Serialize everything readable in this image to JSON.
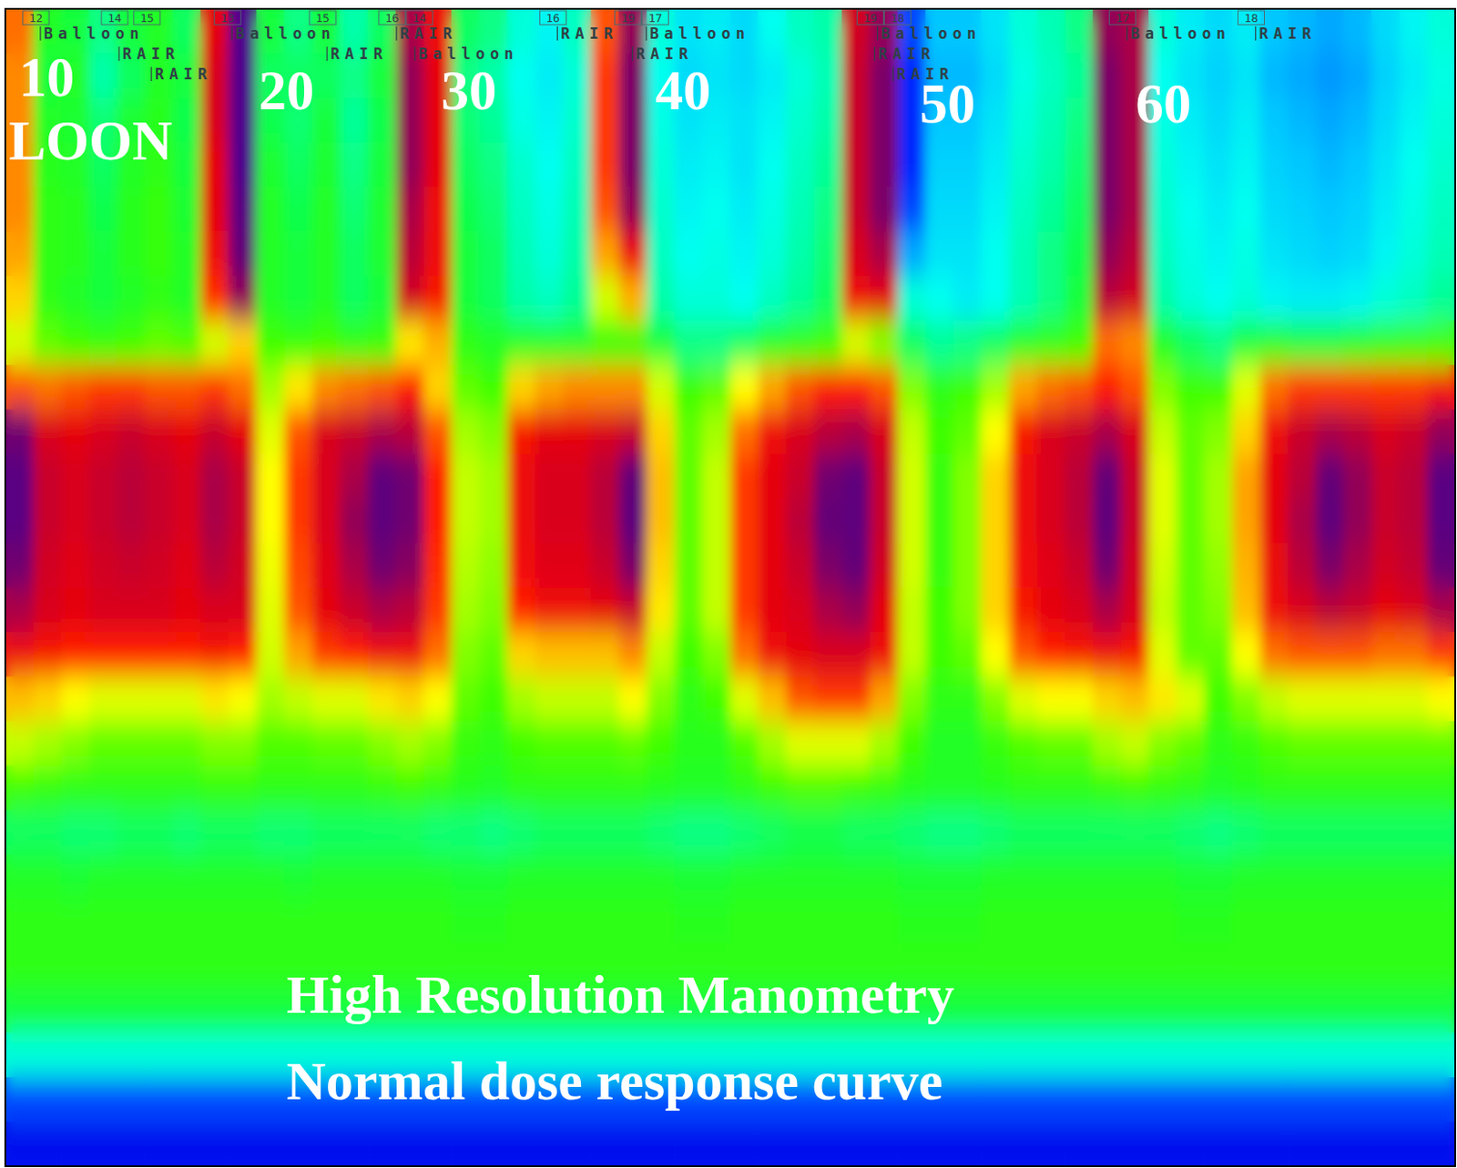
{
  "chart_data": {
    "type": "heatmap",
    "title": "High Resolution Manometry",
    "subtitle": "Normal dose response curve",
    "xlim": [
      0,
      52
    ],
    "ylim": [
      0,
      26
    ],
    "zlim": [
      0,
      100
    ],
    "tick_labels": false,
    "grid": false,
    "annotations": [
      "10",
      "LOON",
      "20",
      "30",
      "40",
      "50",
      "60"
    ],
    "events": [
      {
        "x": 1.26,
        "label": "12",
        "text": "Balloon"
      },
      {
        "x": 4.08,
        "label": "14",
        "text": "RAIR"
      },
      {
        "x": 5.24,
        "label": "15",
        "text": "RAIR"
      },
      {
        "x": 8.13,
        "label": "13",
        "text": "Balloon"
      },
      {
        "x": 11.54,
        "label": "15",
        "text": "RAIR"
      },
      {
        "x": 14.03,
        "label": "16",
        "text": "RAIR"
      },
      {
        "x": 14.69,
        "label": "14",
        "text": "Balloon"
      },
      {
        "x": 19.8,
        "label": "16",
        "text": "RAIR"
      },
      {
        "x": 22.99,
        "label": "17",
        "text": "Balloon"
      },
      {
        "x": 22.49,
        "label": "19",
        "text": "RAIR"
      },
      {
        "x": 31.28,
        "label": "18",
        "text": "Balloon"
      },
      {
        "x": 31.18,
        "label": "19",
        "text": "RAIR"
      },
      {
        "x": 31.84,
        "text": "RAIR"
      },
      {
        "x": 40.23,
        "label": "17",
        "text": "Balloon"
      },
      {
        "x": 44.84,
        "label": "18",
        "text": "RAIR"
      }
    ],
    "z": [
      [
        70,
        42,
        40,
        36,
        40,
        42,
        38,
        82,
        100,
        40,
        36,
        40,
        34,
        38,
        90,
        80,
        38,
        36,
        30,
        27,
        32,
        72,
        92,
        30,
        25,
        26,
        24,
        28,
        32,
        34,
        85,
        92,
        14,
        22,
        22,
        25,
        30,
        33,
        36,
        92,
        90,
        30,
        26,
        24,
        26,
        22,
        21,
        20,
        21,
        24,
        27,
        30
      ],
      [
        68,
        40,
        42,
        34,
        38,
        42,
        40,
        84,
        100,
        38,
        38,
        38,
        36,
        40,
        92,
        82,
        36,
        34,
        28,
        26,
        30,
        74,
        94,
        28,
        24,
        25,
        24,
        26,
        30,
        33,
        86,
        94,
        12,
        21,
        21,
        24,
        29,
        32,
        35,
        94,
        90,
        28,
        25,
        23,
        25,
        21,
        20,
        19,
        20,
        23,
        26,
        29
      ],
      [
        68,
        42,
        41,
        37,
        41,
        43,
        39,
        84,
        100,
        39,
        37,
        40,
        35,
        39,
        92,
        82,
        37,
        35,
        29,
        27,
        31,
        74,
        94,
        29,
        25,
        26,
        25,
        27,
        31,
        34,
        86,
        94,
        12,
        22,
        22,
        25,
        30,
        33,
        36,
        94,
        90,
        29,
        26,
        24,
        26,
        22,
        21,
        20,
        21,
        24,
        27,
        30
      ],
      [
        68,
        43,
        42,
        38,
        42,
        44,
        40,
        82,
        100,
        41,
        38,
        41,
        36,
        40,
        92,
        82,
        38,
        36,
        31,
        28,
        32,
        74,
        94,
        30,
        26,
        27,
        25,
        28,
        32,
        35,
        86,
        94,
        12,
        23,
        23,
        26,
        31,
        34,
        37,
        94,
        90,
        30,
        27,
        25,
        27,
        23,
        22,
        21,
        22,
        25,
        28,
        31
      ],
      [
        68,
        44,
        43,
        39,
        43,
        45,
        41,
        82,
        98,
        42,
        39,
        42,
        37,
        41,
        90,
        80,
        39,
        37,
        32,
        29,
        33,
        72,
        92,
        31,
        27,
        28,
        26,
        29,
        33,
        36,
        86,
        94,
        14,
        24,
        24,
        27,
        32,
        35,
        38,
        94,
        90,
        31,
        28,
        26,
        28,
        24,
        23,
        22,
        23,
        26,
        29,
        32
      ],
      [
        66,
        44,
        43,
        40,
        43,
        45,
        42,
        80,
        96,
        42,
        40,
        42,
        38,
        41,
        88,
        80,
        40,
        38,
        33,
        30,
        34,
        66,
        80,
        32,
        28,
        29,
        27,
        30,
        34,
        37,
        84,
        90,
        20,
        25,
        25,
        28,
        33,
        36,
        39,
        92,
        88,
        32,
        29,
        27,
        29,
        25,
        24,
        23,
        24,
        27,
        30,
        33
      ],
      [
        62,
        44,
        42,
        40,
        42,
        44,
        42,
        75,
        92,
        42,
        40,
        42,
        38,
        40,
        85,
        78,
        40,
        38,
        34,
        32,
        35,
        55,
        65,
        34,
        30,
        30,
        28,
        32,
        35,
        38,
        80,
        82,
        30,
        28,
        26,
        28,
        33,
        36,
        40,
        88,
        85,
        34,
        30,
        28,
        30,
        27,
        26,
        26,
        27,
        30,
        32,
        35
      ],
      [
        55,
        48,
        46,
        45,
        46,
        48,
        47,
        55,
        62,
        46,
        45,
        46,
        44,
        45,
        60,
        65,
        44,
        42,
        42,
        42,
        42,
        45,
        45,
        40,
        36,
        36,
        38,
        42,
        44,
        46,
        55,
        50,
        38,
        35,
        36,
        38,
        42,
        44,
        46,
        70,
        68,
        42,
        38,
        36,
        40,
        42,
        40,
        40,
        42,
        44,
        45,
        46
      ],
      [
        72,
        70,
        72,
        74,
        74,
        72,
        72,
        74,
        70,
        52,
        60,
        68,
        70,
        72,
        76,
        62,
        48,
        46,
        62,
        66,
        68,
        68,
        68,
        55,
        46,
        48,
        58,
        66,
        72,
        76,
        76,
        72,
        50,
        44,
        46,
        52,
        66,
        70,
        72,
        76,
        72,
        50,
        46,
        46,
        56,
        70,
        74,
        74,
        74,
        74,
        74,
        78
      ],
      [
        95,
        84,
        82,
        84,
        86,
        84,
        82,
        86,
        82,
        56,
        72,
        84,
        86,
        90,
        88,
        72,
        52,
        50,
        78,
        82,
        82,
        84,
        86,
        62,
        48,
        52,
        70,
        80,
        84,
        88,
        90,
        84,
        54,
        46,
        48,
        58,
        78,
        84,
        86,
        90,
        84,
        54,
        48,
        50,
        62,
        80,
        86,
        90,
        88,
        84,
        86,
        92
      ],
      [
        98,
        86,
        84,
        86,
        88,
        86,
        84,
        90,
        86,
        58,
        74,
        84,
        90,
        97,
        95,
        76,
        54,
        52,
        80,
        84,
        84,
        88,
        96,
        64,
        48,
        54,
        74,
        82,
        86,
        95,
        97,
        86,
        55,
        45,
        50,
        62,
        80,
        84,
        88,
        96,
        86,
        56,
        48,
        52,
        66,
        82,
        88,
        96,
        92,
        86,
        88,
        98
      ],
      [
        98,
        86,
        84,
        86,
        88,
        86,
        84,
        90,
        86,
        58,
        74,
        84,
        92,
        97,
        95,
        76,
        54,
        52,
        80,
        84,
        84,
        88,
        97,
        64,
        48,
        54,
        74,
        82,
        88,
        96,
        97,
        86,
        55,
        45,
        50,
        62,
        80,
        84,
        88,
        97,
        86,
        56,
        48,
        52,
        66,
        82,
        90,
        97,
        92,
        86,
        88,
        98
      ],
      [
        95,
        85,
        83,
        85,
        86,
        85,
        83,
        88,
        85,
        57,
        73,
        83,
        90,
        95,
        93,
        75,
        53,
        51,
        79,
        83,
        83,
        86,
        94,
        62,
        48,
        54,
        74,
        82,
        86,
        94,
        96,
        85,
        55,
        45,
        50,
        62,
        79,
        83,
        86,
        95,
        85,
        55,
        48,
        51,
        65,
        81,
        88,
        94,
        90,
        85,
        87,
        96
      ],
      [
        90,
        84,
        82,
        84,
        84,
        84,
        82,
        84,
        84,
        56,
        72,
        82,
        86,
        90,
        88,
        74,
        52,
        50,
        76,
        80,
        80,
        82,
        86,
        60,
        48,
        54,
        74,
        82,
        84,
        90,
        92,
        82,
        54,
        46,
        50,
        62,
        78,
        82,
        84,
        90,
        84,
        54,
        48,
        50,
        64,
        80,
        84,
        88,
        86,
        82,
        84,
        90
      ],
      [
        80,
        78,
        76,
        76,
        76,
        76,
        76,
        78,
        76,
        55,
        66,
        74,
        76,
        80,
        80,
        70,
        50,
        48,
        62,
        64,
        64,
        64,
        68,
        54,
        46,
        50,
        70,
        80,
        82,
        84,
        84,
        80,
        54,
        46,
        48,
        58,
        72,
        76,
        78,
        80,
        78,
        56,
        48,
        48,
        58,
        70,
        72,
        72,
        72,
        70,
        70,
        74
      ],
      [
        64,
        62,
        58,
        56,
        56,
        56,
        56,
        60,
        58,
        52,
        54,
        56,
        56,
        60,
        62,
        58,
        48,
        46,
        52,
        54,
        54,
        54,
        58,
        50,
        44,
        46,
        56,
        64,
        72,
        74,
        74,
        66,
        50,
        44,
        44,
        50,
        56,
        58,
        58,
        62,
        64,
        60,
        56,
        46,
        50,
        54,
        56,
        56,
        56,
        56,
        56,
        58
      ],
      [
        54,
        52,
        50,
        48,
        48,
        48,
        48,
        50,
        50,
        47,
        47,
        48,
        48,
        50,
        52,
        50,
        45,
        44,
        46,
        47,
        47,
        47,
        48,
        46,
        43,
        43,
        47,
        52,
        56,
        56,
        56,
        52,
        46,
        42,
        42,
        45,
        47,
        48,
        48,
        52,
        54,
        50,
        48,
        44,
        45,
        47,
        48,
        48,
        48,
        48,
        48,
        48
      ],
      [
        46,
        45,
        44,
        44,
        44,
        44,
        44,
        45,
        45,
        44,
        44,
        44,
        44,
        45,
        46,
        45,
        43,
        42,
        44,
        44,
        44,
        44,
        44,
        43,
        42,
        42,
        44,
        46,
        47,
        47,
        46,
        45,
        43,
        42,
        42,
        43,
        44,
        44,
        44,
        45,
        46,
        45,
        44,
        42,
        43,
        44,
        44,
        44,
        44,
        44,
        44,
        44
      ],
      [
        38,
        38,
        37,
        37,
        38,
        38,
        37,
        38,
        38,
        37,
        37,
        38,
        38,
        38,
        38,
        37,
        37,
        36,
        37,
        38,
        38,
        38,
        38,
        37,
        36,
        36,
        37,
        38,
        39,
        39,
        38,
        38,
        37,
        36,
        36,
        37,
        38,
        38,
        38,
        38,
        38,
        38,
        37,
        36,
        37,
        38,
        38,
        38,
        38,
        38,
        38,
        38
      ],
      [
        42,
        42,
        41,
        42,
        42,
        42,
        42,
        42,
        42,
        42,
        41,
        42,
        42,
        42,
        42,
        42,
        41,
        41,
        42,
        42,
        42,
        42,
        42,
        42,
        41,
        41,
        42,
        42,
        42,
        42,
        42,
        42,
        41,
        41,
        41,
        42,
        42,
        42,
        42,
        42,
        42,
        42,
        41,
        41,
        42,
        42,
        42,
        42,
        42,
        42,
        42,
        42
      ],
      [
        44,
        44,
        44,
        44,
        44,
        44,
        44,
        44,
        44,
        44,
        44,
        44,
        44,
        44,
        44,
        44,
        43,
        43,
        44,
        44,
        44,
        44,
        44,
        44,
        43,
        43,
        44,
        44,
        44,
        44,
        44,
        44,
        43,
        43,
        43,
        44,
        44,
        44,
        44,
        44,
        44,
        44,
        43,
        43,
        44,
        44,
        44,
        44,
        44,
        44,
        44,
        44
      ],
      [
        44,
        44,
        44,
        44,
        44,
        44,
        44,
        44,
        44,
        44,
        44,
        44,
        44,
        44,
        44,
        44,
        44,
        44,
        44,
        44,
        44,
        44,
        44,
        44,
        44,
        44,
        44,
        44,
        44,
        44,
        44,
        44,
        44,
        44,
        44,
        44,
        44,
        44,
        44,
        44,
        44,
        44,
        44,
        44,
        44,
        44,
        44,
        44,
        44,
        44,
        44,
        44
      ],
      [
        40,
        40,
        40,
        40,
        40,
        40,
        40,
        40,
        40,
        40,
        40,
        40,
        40,
        40,
        40,
        40,
        40,
        40,
        40,
        40,
        40,
        40,
        40,
        40,
        40,
        40,
        40,
        40,
        40,
        40,
        40,
        40,
        40,
        40,
        40,
        40,
        40,
        40,
        40,
        40,
        40,
        40,
        40,
        40,
        40,
        40,
        40,
        40,
        40,
        40,
        40,
        40
      ],
      [
        30,
        30,
        30,
        30,
        30,
        30,
        30,
        30,
        30,
        30,
        30,
        30,
        30,
        30,
        30,
        30,
        30,
        30,
        30,
        30,
        30,
        30,
        30,
        30,
        30,
        30,
        30,
        30,
        30,
        30,
        30,
        30,
        30,
        30,
        30,
        30,
        30,
        30,
        30,
        30,
        30,
        30,
        30,
        30,
        30,
        30,
        30,
        30,
        30,
        30,
        30,
        30
      ],
      [
        14,
        14,
        14,
        14,
        14,
        14,
        14,
        14,
        14,
        14,
        14,
        14,
        14,
        14,
        14,
        14,
        14,
        14,
        14,
        14,
        14,
        14,
        14,
        14,
        14,
        14,
        14,
        14,
        14,
        14,
        14,
        14,
        14,
        14,
        14,
        14,
        14,
        14,
        14,
        14,
        14,
        14,
        14,
        14,
        14,
        14,
        14,
        14,
        14,
        14,
        14,
        14
      ],
      [
        4,
        4,
        4,
        4,
        4,
        4,
        4,
        4,
        4,
        4,
        4,
        4,
        4,
        4,
        4,
        4,
        4,
        4,
        4,
        4,
        4,
        4,
        4,
        4,
        4,
        4,
        4,
        4,
        4,
        4,
        4,
        4,
        4,
        4,
        4,
        4,
        4,
        4,
        4,
        4,
        4,
        4,
        4,
        4,
        4,
        4,
        4,
        4,
        4,
        4,
        4,
        4
      ]
    ]
  }
}
